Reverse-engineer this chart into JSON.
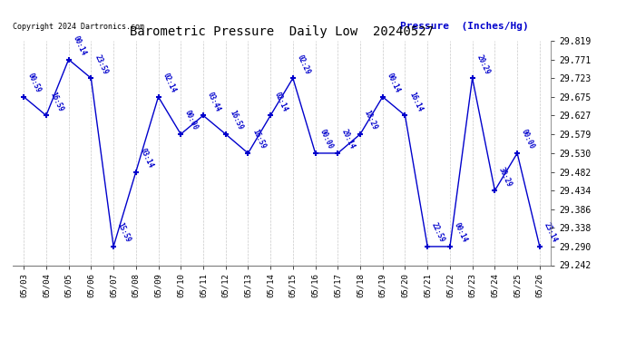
{
  "title": "Barometric Pressure  Daily Low  20240527",
  "ylabel_text": "Pressure  (Inches/Hg)",
  "copyright": "Copyright 2024 Dartronics.com",
  "background_color": "#ffffff",
  "line_color": "#0000cc",
  "text_color": "#0000cc",
  "grid_color": "#bbbbbb",
  "dates": [
    "05/03",
    "05/04",
    "05/05",
    "05/06",
    "05/07",
    "05/08",
    "05/09",
    "05/10",
    "05/11",
    "05/12",
    "05/13",
    "05/14",
    "05/15",
    "05/16",
    "05/17",
    "05/18",
    "05/19",
    "05/20",
    "05/21",
    "05/22",
    "05/23",
    "05/24",
    "05/25",
    "05/26"
  ],
  "values": [
    29.675,
    29.627,
    29.771,
    29.723,
    29.29,
    29.482,
    29.675,
    29.579,
    29.627,
    29.579,
    29.53,
    29.627,
    29.723,
    29.53,
    29.53,
    29.579,
    29.675,
    29.627,
    29.29,
    29.29,
    29.723,
    29.434,
    29.53,
    29.29
  ],
  "times": [
    "00:59",
    "16:59",
    "00:14",
    "23:59",
    "15:59",
    "03:14",
    "02:14",
    "00:00",
    "03:44",
    "16:59",
    "16:59",
    "02:14",
    "02:29",
    "00:00",
    "20:14",
    "18:29",
    "00:14",
    "16:14",
    "22:59",
    "00:14",
    "20:29",
    "30:29",
    "00:00",
    "23:14"
  ],
  "ylim_min": 29.242,
  "ylim_max": 29.819,
  "yticks": [
    29.242,
    29.29,
    29.338,
    29.386,
    29.434,
    29.482,
    29.53,
    29.579,
    29.627,
    29.675,
    29.723,
    29.771,
    29.819
  ]
}
